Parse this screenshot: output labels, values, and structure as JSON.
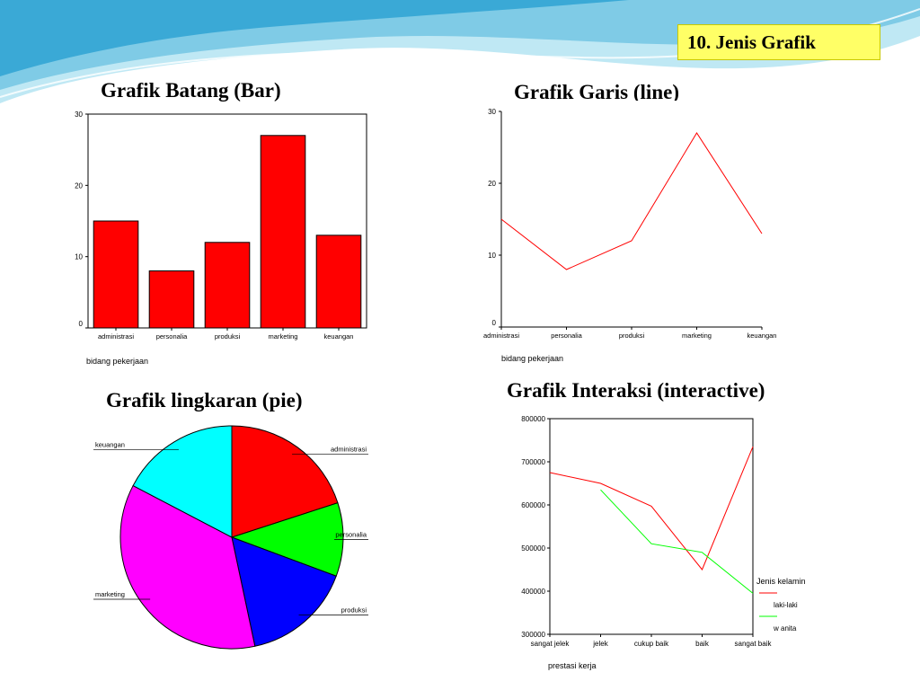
{
  "slide": {
    "title": "10. Jenis Grafik"
  },
  "colors": {
    "wave_light": "#bfe8f4",
    "wave_mid": "#7fcbe6",
    "wave_dark": "#3aa9d6",
    "title_box": "#ffff66"
  },
  "chart_data": [
    {
      "type": "bar",
      "heading": "Grafik Batang (Bar)",
      "categories": [
        "administrasi",
        "personalia",
        "produksi",
        "marketing",
        "keuangan"
      ],
      "values": [
        15,
        8,
        12,
        27,
        13
      ],
      "yticks": [
        0,
        10,
        20,
        30
      ],
      "ylim": [
        0,
        30
      ],
      "xlabel": "bidang pekerjaan",
      "bar_color": "#ff0000"
    },
    {
      "type": "line",
      "heading": "Grafik Garis (line)",
      "categories": [
        "administrasi",
        "personalia",
        "produksi",
        "marketing",
        "keuangan"
      ],
      "values": [
        15,
        8,
        12,
        27,
        13
      ],
      "yticks": [
        0,
        10,
        20,
        30
      ],
      "ylim": [
        0,
        30
      ],
      "xlabel": "bidang pekerjaan",
      "line_color": "#ff0000"
    },
    {
      "type": "pie",
      "heading": "Grafik lingkaran (pie)",
      "slices": [
        {
          "label": "administrasi",
          "value": 15,
          "color": "#ff0000"
        },
        {
          "label": "personalia",
          "value": 8,
          "color": "#00ff00"
        },
        {
          "label": "produksi",
          "value": 12,
          "color": "#0000ff"
        },
        {
          "label": "marketing",
          "value": 27,
          "color": "#ff00ff"
        },
        {
          "label": "keuangan",
          "value": 13,
          "color": "#00ffff"
        }
      ]
    },
    {
      "type": "line",
      "heading": "Grafik Interaksi (interactive)",
      "categories": [
        "sangat jelek",
        "jelek",
        "cukup baik",
        "baik",
        "sangat baik"
      ],
      "yticks": [
        300000,
        400000,
        500000,
        600000,
        700000,
        800000
      ],
      "ylim": [
        300000,
        800000
      ],
      "xlabel": "prestasi kerja",
      "legend_title": "Jenis kelamin",
      "legend_position": "right",
      "series": [
        {
          "name": "laki-laki",
          "color": "#ff0000",
          "values": [
            675000,
            650000,
            597000,
            450000,
            735000
          ]
        },
        {
          "name": "w anita",
          "color": "#00ff00",
          "values": [
            null,
            635000,
            510000,
            490000,
            395000
          ]
        }
      ]
    }
  ]
}
